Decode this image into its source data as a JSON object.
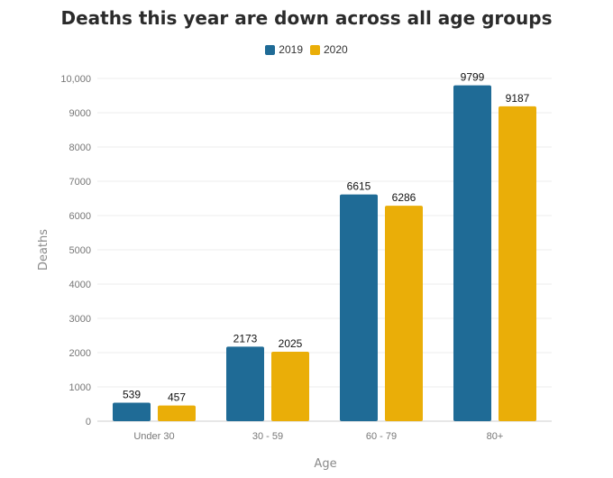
{
  "chart_data": {
    "type": "bar",
    "title": "Deaths this year are down across all age groups",
    "xlabel": "Age",
    "ylabel": "Deaths",
    "categories": [
      "Under 30",
      "30 - 59",
      "60 - 79",
      "80+"
    ],
    "series": [
      {
        "name": "2019",
        "color": "#1f6b96",
        "values": [
          539,
          2173,
          6615,
          9799
        ]
      },
      {
        "name": "2020",
        "color": "#eaae08",
        "values": [
          457,
          2025,
          6286,
          9187
        ]
      }
    ],
    "ylim": [
      0,
      10000
    ],
    "yticks": [
      0,
      1000,
      2000,
      3000,
      4000,
      5000,
      6000,
      7000,
      8000,
      9000,
      10000
    ],
    "ytick_labels": [
      "0",
      "1000",
      "2000",
      "3000",
      "4000",
      "5000",
      "6000",
      "7000",
      "8000",
      "9000",
      "10,000"
    ],
    "grid": true,
    "legend": "top-center"
  }
}
